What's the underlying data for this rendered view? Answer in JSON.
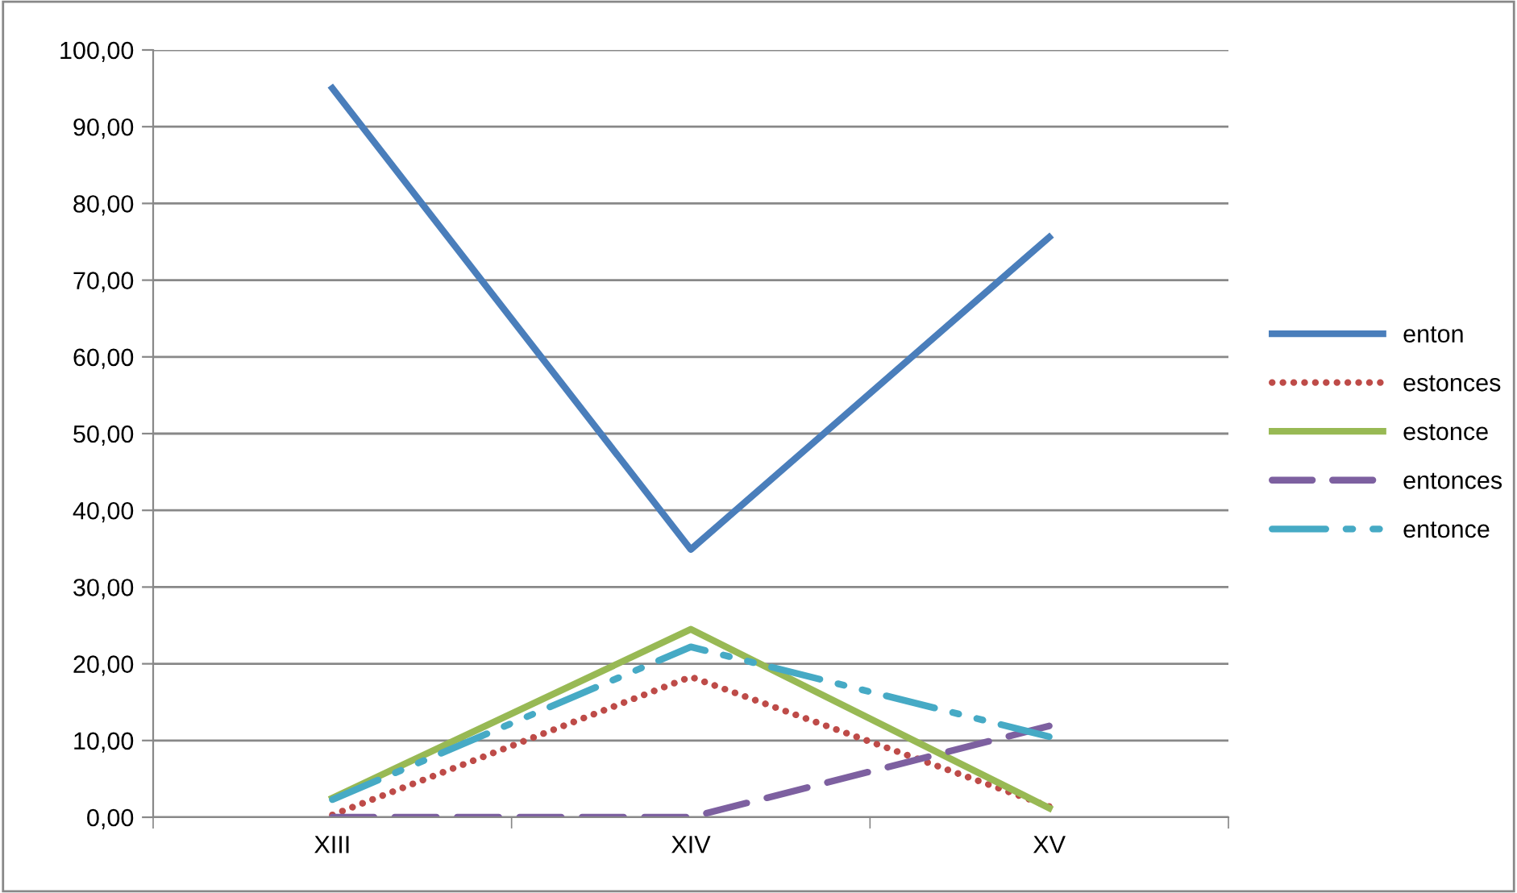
{
  "chart_data": {
    "type": "line",
    "categories": [
      "XIII",
      "XIV",
      "XV"
    ],
    "series": [
      {
        "name": "enton",
        "color": "#4a7ebb",
        "values": [
          95.0,
          34.9,
          75.6
        ],
        "line_style": "solid"
      },
      {
        "name": "estonces",
        "color": "#be4b48",
        "values": [
          0.3,
          18.3,
          1.4
        ],
        "line_style": "dotted"
      },
      {
        "name": "estonce",
        "color": "#98b954",
        "values": [
          2.5,
          24.5,
          1.2
        ],
        "line_style": "solid"
      },
      {
        "name": "entonces",
        "color": "#7d60a0",
        "values": [
          0.0,
          0.0,
          11.9
        ],
        "line_style": "dashed"
      },
      {
        "name": "entonce",
        "color": "#46aac5",
        "values": [
          2.3,
          22.2,
          10.5
        ],
        "line_style": "dashdot"
      }
    ],
    "ylim": [
      0,
      100
    ],
    "yticks": [
      {
        "value": 0,
        "label": "0,00"
      },
      {
        "value": 10,
        "label": "10,00"
      },
      {
        "value": 20,
        "label": "20,00"
      },
      {
        "value": 30,
        "label": "30,00"
      },
      {
        "value": 40,
        "label": "40,00"
      },
      {
        "value": 50,
        "label": "50,00"
      },
      {
        "value": 60,
        "label": "60,00"
      },
      {
        "value": 70,
        "label": "70,00"
      },
      {
        "value": 80,
        "label": "80,00"
      },
      {
        "value": 90,
        "label": "90,00"
      },
      {
        "value": 100,
        "label": "100,00"
      }
    ],
    "grid": "y",
    "legend": "right",
    "marker": "none"
  }
}
